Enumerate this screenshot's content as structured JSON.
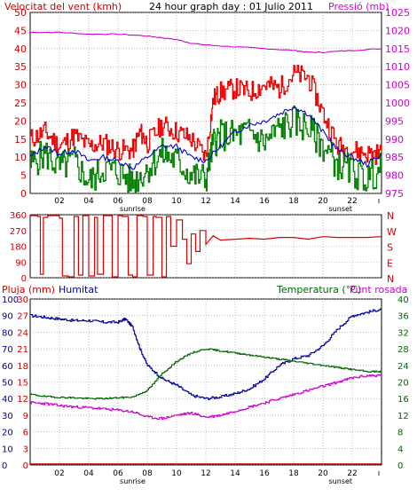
{
  "colors": {
    "wind": "#ee0000",
    "gust_green": "#008000",
    "wind_avg": "#0000cc",
    "pressure": "#cc00cc",
    "direction": "#dd0000",
    "humidity": "#000099",
    "temperature": "#006600",
    "dewpoint": "#cc00cc",
    "rain": "#cc0000",
    "frame": "#000000",
    "grid": "#9a9a9a"
  },
  "chart_data": [
    {
      "type": "line",
      "title": "24 hour graph day : 01 Julio 2011",
      "ylabel_left": "Velocitat del vent (kmh)",
      "ylabel_right": "Pressió (mb)",
      "ylim_left": [
        0,
        50
      ],
      "ylim_right": [
        975,
        1025
      ],
      "yticks_left": [
        "0",
        "5",
        "10",
        "15",
        "20",
        "25",
        "30",
        "35",
        "40",
        "45",
        "50"
      ],
      "yticks_right": [
        "975",
        "980",
        "985",
        "990",
        "995",
        "1000",
        "1005",
        "1010",
        "1015",
        "1020",
        "1025"
      ],
      "xlim": [
        0,
        24
      ],
      "xticks": [
        "02",
        "04",
        "06",
        "08",
        "10",
        "12",
        "14",
        "16",
        "18",
        "20",
        "22"
      ],
      "markers": [
        {
          "label": "sunrise",
          "x": 7.0
        },
        {
          "label": "sunset",
          "x": 21.2
        }
      ],
      "grid": true,
      "series": [
        {
          "key": "gust",
          "x": [
            0,
            1,
            2,
            3,
            4,
            5,
            6,
            7,
            7.5,
            8,
            9,
            10,
            11,
            12,
            12.5,
            13,
            14,
            15,
            16,
            17,
            18,
            19,
            20,
            21,
            22,
            23,
            24
          ],
          "values": [
            15,
            17,
            13,
            16,
            13,
            14,
            12,
            12,
            17,
            14,
            19,
            17,
            15,
            10,
            26,
            28,
            29,
            28,
            30,
            29,
            33,
            32,
            22,
            13,
            12,
            11,
            11
          ]
        },
        {
          "key": "wind_green",
          "x": [
            0,
            1,
            2,
            3,
            4,
            5,
            6,
            7,
            8,
            9,
            10,
            11,
            12,
            12.5,
            13,
            14,
            15,
            16,
            17,
            18,
            19,
            20,
            21,
            22,
            23,
            24
          ],
          "values": [
            8,
            11,
            7,
            9,
            3,
            7,
            6,
            3,
            7,
            11,
            9,
            5,
            4,
            14,
            16,
            16,
            17,
            14,
            18,
            20,
            18,
            13,
            8,
            6,
            4,
            7
          ]
        },
        {
          "key": "wind_avg",
          "x": [
            0,
            1,
            2,
            3,
            4,
            5,
            6,
            7,
            8,
            9,
            10,
            11,
            12,
            13,
            14,
            15,
            16,
            17,
            18,
            19,
            20,
            21,
            22,
            23,
            24
          ],
          "values": [
            10,
            13,
            11,
            12,
            9,
            10,
            9,
            7,
            10,
            13,
            13,
            10,
            9,
            13,
            17,
            19,
            20,
            22,
            24,
            22,
            17,
            12,
            10,
            8,
            11
          ]
        },
        {
          "key": "pressure",
          "x": [
            0,
            2,
            4,
            6,
            8,
            9,
            10,
            11,
            12,
            14,
            16,
            18,
            19,
            20,
            22,
            24
          ],
          "values": [
            1019.5,
            1019.5,
            1019,
            1019,
            1018.5,
            1018,
            1017.5,
            1016.5,
            1016,
            1015.5,
            1015,
            1014.5,
            1014,
            1014,
            1014.5,
            1015
          ]
        }
      ]
    },
    {
      "type": "scatter",
      "ylim": [
        0,
        360
      ],
      "yticks": [
        "0",
        "90",
        "180",
        "270",
        "360"
      ],
      "direction_labels": [
        "N",
        "W",
        "S",
        "E",
        "N"
      ],
      "xlim": [
        0,
        24
      ],
      "x": [
        0,
        0.5,
        0.7,
        0.9,
        1.2,
        1.7,
        2.0,
        2.2,
        2.6,
        3.0,
        3.3,
        3.6,
        4.0,
        4.4,
        4.6,
        5.0,
        5.4,
        5.6,
        6.0,
        6.3,
        6.7,
        7.0,
        7.3,
        7.7,
        8.0,
        8.4,
        8.6,
        9.0,
        9.3,
        9.6,
        10.0,
        10.4,
        10.7,
        11.0,
        11.3,
        11.6,
        12.0,
        12.5,
        13,
        14,
        15,
        16,
        17,
        18,
        19,
        20,
        21,
        22,
        23,
        24
      ],
      "values": [
        355,
        350,
        20,
        345,
        355,
        355,
        340,
        10,
        5,
        350,
        15,
        355,
        10,
        345,
        20,
        355,
        355,
        5,
        355,
        350,
        15,
        5,
        355,
        350,
        15,
        350,
        345,
        5,
        350,
        180,
        330,
        220,
        80,
        250,
        150,
        270,
        190,
        240,
        215,
        220,
        225,
        220,
        230,
        230,
        220,
        235,
        230,
        230,
        230,
        235
      ]
    },
    {
      "type": "line",
      "ylabel_left": "Pluja (mm)",
      "ylabel_left2": "Humitat",
      "ylabel_right": "Temperatura (°C)",
      "ylabel_right2": "Punt rosada",
      "ylim_left": [
        0,
        100
      ],
      "ylim_left2": [
        0,
        30
      ],
      "ylim_right": [
        0,
        40
      ],
      "yticks_left": [
        "0",
        "10",
        "20",
        "30",
        "40",
        "50",
        "60",
        "70",
        "80",
        "90",
        "100"
      ],
      "yticks_left2": [
        "0",
        "3",
        "6",
        "9",
        "12",
        "15",
        "18",
        "21",
        "24",
        "27",
        "30"
      ],
      "yticks_right": [
        "0",
        "4",
        "8",
        "12",
        "16",
        "20",
        "24",
        "28",
        "32",
        "36",
        "40"
      ],
      "xlim": [
        0,
        24
      ],
      "xticks": [
        "02",
        "04",
        "06",
        "08",
        "10",
        "12",
        "14",
        "16",
        "18",
        "20",
        "22"
      ],
      "markers": [
        {
          "label": "sunrise",
          "x": 7.0
        },
        {
          "label": "sunset",
          "x": 21.2
        }
      ],
      "grid": true,
      "series": [
        {
          "key": "humidity",
          "x": [
            0,
            1,
            2,
            3,
            4,
            5,
            6,
            6.5,
            7,
            7.5,
            8,
            9,
            10,
            11,
            12,
            13,
            14,
            15,
            16,
            17,
            18,
            19,
            20,
            21,
            22,
            23,
            24
          ],
          "values": [
            90,
            89,
            88,
            87,
            87,
            86,
            86,
            88,
            83,
            70,
            60,
            52,
            48,
            42,
            40,
            41,
            43,
            46,
            52,
            60,
            64,
            66,
            72,
            82,
            90,
            92,
            94
          ]
        },
        {
          "key": "temperature",
          "x": [
            0,
            1,
            2,
            3,
            4,
            5,
            6,
            7,
            8,
            9,
            10,
            11,
            12,
            13,
            14,
            15,
            16,
            17,
            18,
            19,
            20,
            21,
            22,
            23,
            24
          ],
          "values": [
            17,
            16.5,
            16.3,
            16.2,
            16,
            16,
            16.2,
            16.4,
            18,
            22,
            25,
            27,
            28,
            27.5,
            27,
            26.5,
            26,
            25.5,
            25,
            24.5,
            24,
            23.5,
            23,
            22.5,
            22.5
          ]
        },
        {
          "key": "dewpoint",
          "x": [
            0,
            1,
            2,
            3,
            4,
            5,
            6,
            7,
            8,
            9,
            10,
            11,
            12,
            13,
            14,
            15,
            16,
            17,
            18,
            19,
            20,
            21,
            22,
            23,
            24
          ],
          "values": [
            15,
            14.8,
            14.3,
            14,
            13.8,
            13.5,
            13.2,
            12.8,
            11.5,
            11.2,
            12,
            12.5,
            11.5,
            12,
            13,
            14,
            15,
            16,
            17,
            18,
            19,
            20,
            21,
            21.5,
            21.6
          ]
        },
        {
          "key": "rain",
          "x": [
            0,
            24
          ],
          "values": [
            0,
            0
          ]
        }
      ]
    }
  ],
  "labels": {
    "title": "24 hour graph day : 01 Julio 2011",
    "wind_speed": "Velocitat del vent (kmh)",
    "pressure": "Pressió (mb)",
    "rain": "Pluja (mm)",
    "humidity": "Humitat",
    "temperature": "Temperatura (°C)",
    "dewpoint": "Punt rosada",
    "sunrise": "sunrise",
    "sunset": "sunset"
  }
}
